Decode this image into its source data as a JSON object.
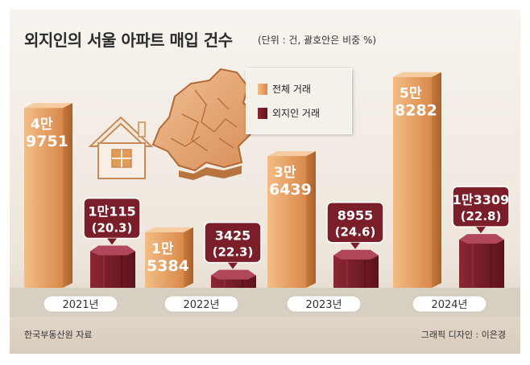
{
  "title": "외지인의 서울 아파트 매입 건수",
  "subtitle": "(단위 : 건, 괄호안은 비중 %)",
  "source": "한국부동산원 자료",
  "credit": "그래픽 디자인 : 이은경",
  "colors": {
    "total": "#e8a468",
    "outsider": "#7a1f2a",
    "label_bg": "#7a1f2a",
    "background_top": "#f6f1ea",
    "background_bottom": "#ddd2c2"
  },
  "legend": {
    "total": "전체 거래",
    "outsider": "외지인 거래"
  },
  "chart_data": {
    "type": "bar",
    "categories": [
      "2021년",
      "2022년",
      "2023년",
      "2024년"
    ],
    "series": [
      {
        "name": "전체 거래",
        "values": [
          49751,
          15384,
          36439,
          58282
        ],
        "labels": [
          [
            "4만",
            "9751"
          ],
          [
            "1만",
            "5384"
          ],
          [
            "3만",
            "6439"
          ],
          [
            "5만",
            "8282"
          ]
        ]
      },
      {
        "name": "외지인 거래",
        "values": [
          10115,
          3425,
          8955,
          13309
        ],
        "labels": [
          [
            "1만115",
            "(20.3)"
          ],
          [
            "3425",
            "(22.3)"
          ],
          [
            "8955",
            "(24.6)"
          ],
          [
            "1만3309",
            "(22.8)"
          ]
        ]
      }
    ],
    "share_percent": [
      20.3,
      22.3,
      24.6,
      22.8
    ]
  }
}
